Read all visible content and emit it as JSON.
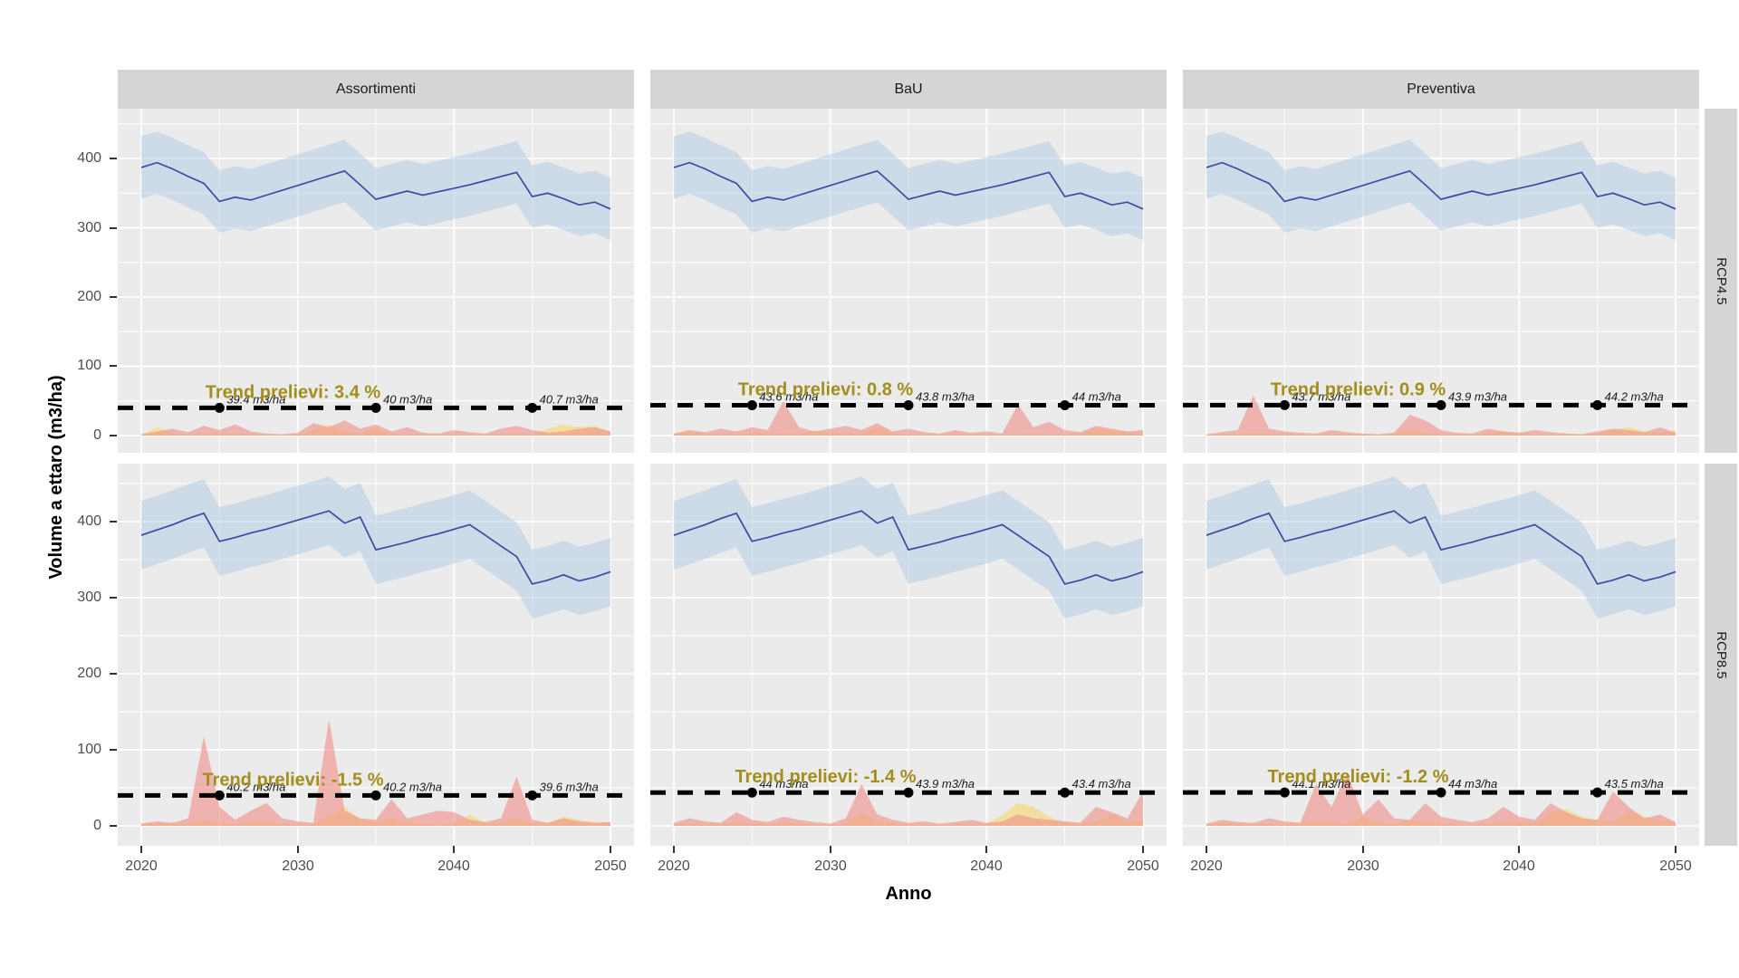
{
  "axis": {
    "y_title": "Volume a ettaro (m3/ha)",
    "x_title": "Anno",
    "y_ticks": [
      "400",
      "300",
      "200",
      "100",
      "0"
    ],
    "x_ticks": [
      "2020",
      "2030",
      "2040",
      "2050"
    ]
  },
  "facets": {
    "cols": [
      "Assortimenti",
      "BaU",
      "Preventiva"
    ],
    "rows": [
      "RCP4.5",
      "RCP8.5"
    ]
  },
  "colors": {
    "panel_bg": "#EBEBEB",
    "strip_bg": "#D5D5D5",
    "grid": "#FFFFFF",
    "volume_line": "#4049A0",
    "volume_band": "#AECCE4",
    "prelievi_red": "#F0918A",
    "prelievi_yellow": "#F2DC8C",
    "harvest_line": "#000000",
    "trend_text": "#A28E1C",
    "marker_label": "#1A1A1A",
    "axis_text": "#4D4D4D"
  },
  "chart_data": {
    "type": "line",
    "title": "",
    "xlabel": "Anno",
    "ylabel": "Volume a ettaro (m3/ha)",
    "x_range": [
      2020,
      2050
    ],
    "x_step": 1,
    "ylim": [
      -25,
      470
    ],
    "grid": true,
    "rows": [
      {
        "name": "RCP4.5",
        "volume": [
          387,
          394,
          385,
          374,
          364,
          338,
          344,
          340,
          347,
          354,
          361,
          368,
          375,
          382,
          362,
          341,
          347,
          353,
          347,
          352,
          357,
          362,
          368,
          374,
          380,
          345,
          350,
          342,
          333,
          337,
          327
        ],
        "ci_halfwidth": 45
      },
      {
        "name": "RCP8.5",
        "volume": [
          382,
          389,
          396,
          404,
          411,
          374,
          379,
          385,
          390,
          396,
          402,
          408,
          414,
          398,
          406,
          363,
          368,
          373,
          379,
          384,
          390,
          396,
          382,
          368,
          354,
          318,
          323,
          330,
          322,
          327,
          334
        ],
        "ci_halfwidth": 45
      }
    ],
    "panels": [
      {
        "facet_col": "Assortimenti",
        "facet_row": "RCP4.5",
        "trend_label": "Trend prelievi: 3.4 %",
        "harvest_mean": 40,
        "harvest_markers": [
          {
            "year": 2025,
            "label": "39.4 m3/ha"
          },
          {
            "year": 2035,
            "label": "40 m3/ha"
          },
          {
            "year": 2045,
            "label": "40.7 m3/ha"
          }
        ],
        "prelievi_red": [
          2,
          6,
          10,
          5,
          14,
          8,
          16,
          6,
          3,
          2,
          4,
          18,
          12,
          22,
          10,
          16,
          6,
          12,
          4,
          3,
          8,
          5,
          3,
          10,
          14,
          8,
          4,
          6,
          10,
          12,
          6
        ],
        "prelievi_yellow": [
          1,
          12,
          4,
          2,
          3,
          2,
          3,
          2,
          1,
          1,
          2,
          8,
          16,
          6,
          3,
          12,
          3,
          2,
          2,
          1,
          2,
          1,
          1,
          2,
          3,
          2,
          10,
          16,
          12,
          14,
          5
        ]
      },
      {
        "facet_col": "BaU",
        "facet_row": "RCP4.5",
        "trend_label": "Trend prelievi: 0.8 %",
        "harvest_mean": 43.8,
        "harvest_markers": [
          {
            "year": 2025,
            "label": "43.6 m3/ha"
          },
          {
            "year": 2035,
            "label": "43.8 m3/ha"
          },
          {
            "year": 2045,
            "label": "44 m3/ha"
          }
        ],
        "prelievi_red": [
          3,
          8,
          5,
          10,
          6,
          12,
          8,
          50,
          12,
          6,
          10,
          14,
          8,
          18,
          6,
          10,
          5,
          3,
          8,
          4,
          6,
          3,
          45,
          12,
          20,
          8,
          5,
          14,
          10,
          6,
          8
        ],
        "prelievi_yellow": [
          2,
          6,
          3,
          2,
          2,
          3,
          4,
          3,
          2,
          8,
          3,
          2,
          3,
          12,
          3,
          2,
          2,
          1,
          3,
          2,
          2,
          1,
          2,
          3,
          2,
          2,
          3,
          10,
          8,
          4,
          3
        ]
      },
      {
        "facet_col": "Preventiva",
        "facet_row": "RCP4.5",
        "trend_label": "Trend prelievi: 0.9 %",
        "harvest_mean": 43.9,
        "harvest_markers": [
          {
            "year": 2025,
            "label": "43.7 m3/ha"
          },
          {
            "year": 2035,
            "label": "43.9 m3/ha"
          },
          {
            "year": 2045,
            "label": "44.2 m3/ha"
          }
        ],
        "prelievi_red": [
          2,
          5,
          8,
          58,
          10,
          6,
          4,
          3,
          8,
          5,
          3,
          2,
          4,
          30,
          22,
          8,
          4,
          3,
          10,
          6,
          4,
          8,
          5,
          3,
          2,
          6,
          10,
          8,
          5,
          12,
          4
        ],
        "prelievi_yellow": [
          1,
          3,
          2,
          4,
          3,
          2,
          2,
          1,
          2,
          3,
          2,
          1,
          3,
          8,
          4,
          2,
          2,
          1,
          4,
          6,
          3,
          2,
          1,
          2,
          2,
          3,
          8,
          12,
          6,
          4,
          8
        ]
      },
      {
        "facet_col": "Assortimenti",
        "facet_row": "RCP8.5",
        "trend_label": "Trend prelievi: -1.5 %",
        "harvest_mean": 40,
        "harvest_markers": [
          {
            "year": 2025,
            "label": "40.2 m3/ha"
          },
          {
            "year": 2035,
            "label": "40.2 m3/ha"
          },
          {
            "year": 2045,
            "label": "39.6 m3/ha"
          }
        ],
        "prelievi_red": [
          3,
          6,
          4,
          10,
          118,
          25,
          8,
          20,
          30,
          10,
          6,
          4,
          140,
          20,
          10,
          8,
          35,
          10,
          15,
          20,
          18,
          8,
          5,
          10,
          65,
          8,
          4,
          10,
          6,
          4,
          5
        ],
        "prelievi_yellow": [
          2,
          4,
          3,
          2,
          8,
          4,
          3,
          6,
          4,
          3,
          2,
          3,
          12,
          25,
          8,
          5,
          10,
          4,
          3,
          2,
          3,
          15,
          4,
          3,
          10,
          4,
          3,
          12,
          8,
          5,
          4
        ]
      },
      {
        "facet_col": "BaU",
        "facet_row": "RCP8.5",
        "trend_label": "Trend prelievi: -1.4 %",
        "harvest_mean": 43.8,
        "harvest_markers": [
          {
            "year": 2025,
            "label": "44 m3/ha"
          },
          {
            "year": 2035,
            "label": "43.9 m3/ha"
          },
          {
            "year": 2045,
            "label": "43.4 m3/ha"
          }
        ],
        "prelievi_red": [
          4,
          10,
          6,
          4,
          18,
          8,
          5,
          12,
          8,
          5,
          3,
          10,
          55,
          15,
          8,
          4,
          6,
          3,
          5,
          8,
          4,
          6,
          15,
          10,
          8,
          6,
          4,
          25,
          18,
          10,
          45
        ],
        "prelievi_yellow": [
          2,
          3,
          2,
          3,
          4,
          3,
          2,
          4,
          3,
          2,
          2,
          3,
          18,
          6,
          3,
          2,
          2,
          1,
          3,
          2,
          3,
          14,
          30,
          25,
          12,
          4,
          3,
          6,
          15,
          5,
          8
        ]
      },
      {
        "facet_col": "Preventiva",
        "facet_row": "RCP8.5",
        "trend_label": "Trend prelievi: -1.2 %",
        "harvest_mean": 43.9,
        "harvest_markers": [
          {
            "year": 2025,
            "label": "44.1 m3/ha"
          },
          {
            "year": 2035,
            "label": "44 m3/ha"
          },
          {
            "year": 2045,
            "label": "43.5 m3/ha"
          }
        ],
        "prelievi_red": [
          3,
          8,
          5,
          4,
          10,
          6,
          4,
          55,
          25,
          70,
          15,
          35,
          10,
          8,
          30,
          12,
          8,
          5,
          10,
          25,
          12,
          8,
          30,
          18,
          10,
          8,
          45,
          25,
          10,
          15,
          5
        ],
        "prelievi_yellow": [
          2,
          4,
          3,
          2,
          3,
          2,
          3,
          5,
          4,
          3,
          12,
          4,
          3,
          8,
          4,
          3,
          2,
          2,
          3,
          4,
          6,
          3,
          18,
          22,
          12,
          8,
          6,
          20,
          12,
          8,
          4
        ]
      }
    ]
  }
}
